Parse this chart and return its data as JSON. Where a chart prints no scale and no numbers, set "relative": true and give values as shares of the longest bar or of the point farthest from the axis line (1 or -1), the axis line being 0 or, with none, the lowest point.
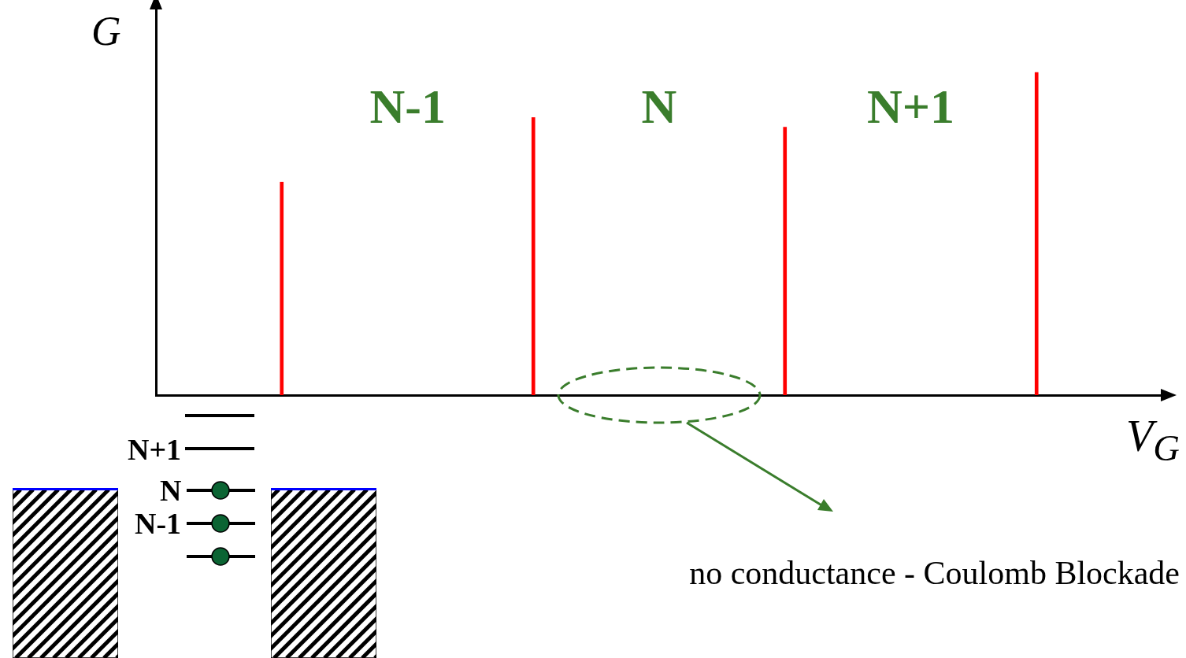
{
  "chart_data": {
    "type": "bar",
    "relative": true,
    "xlabel": "V$_{G}$",
    "ylabel": "G",
    "categories": [
      null,
      null,
      null,
      null
    ],
    "values": [
      0.66,
      0.86,
      0.83,
      1
    ],
    "color": "#ff0000",
    "annotations": [
      "N-1",
      "N",
      "N+1",
      "no conductance - Coulomb Blockade",
      "N+1",
      "N",
      "N-1"
    ]
  }
}
